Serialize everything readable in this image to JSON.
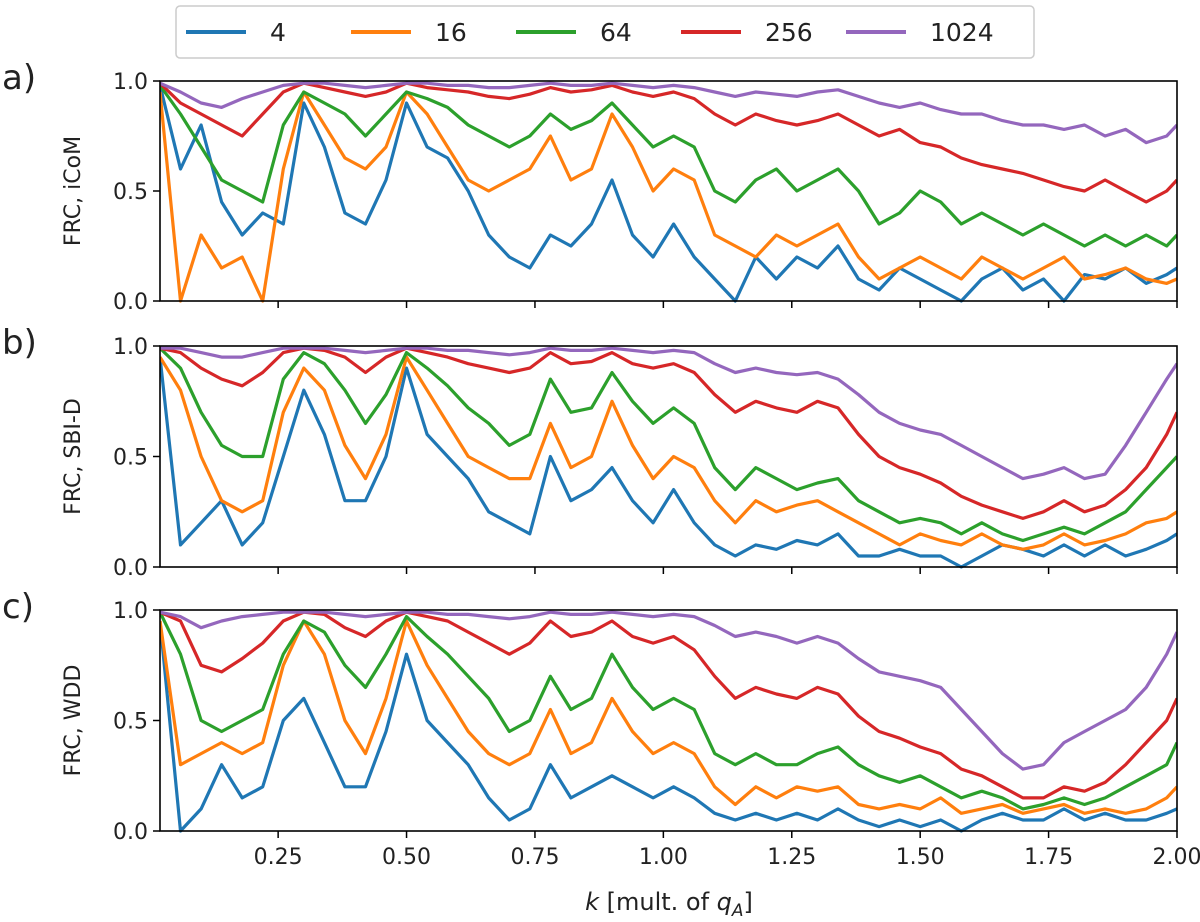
{
  "chart_data": {
    "type": "line",
    "shared_x_axis": true,
    "grid": false,
    "legend": {
      "placement": "top-center",
      "entries": [
        {
          "label": "4",
          "color": "#1f77b4"
        },
        {
          "label": "16",
          "color": "#ff7f0e"
        },
        {
          "label": "64",
          "color": "#2ca02c"
        },
        {
          "label": "256",
          "color": "#d62728"
        },
        {
          "label": "1024",
          "color": "#9467bd"
        }
      ]
    },
    "xlabel": {
      "italic": "k",
      "rest": " [mult. of ",
      "q": "q",
      "sub": "A",
      "close": "]"
    },
    "xlim": [
      0.02,
      2.0
    ],
    "xticks": [
      0.25,
      0.5,
      0.75,
      1.0,
      1.25,
      1.5,
      1.75,
      2.0
    ],
    "xtick_labels": [
      "0.25",
      "0.50",
      "0.75",
      "1.00",
      "1.25",
      "1.50",
      "1.75",
      "2.00"
    ],
    "ylim": [
      0,
      1
    ],
    "yticks": [
      0.0,
      0.5,
      1.0
    ],
    "ytick_labels": [
      "0.0",
      "0.5",
      "1.0"
    ],
    "x": [
      0.02,
      0.06,
      0.1,
      0.14,
      0.18,
      0.22,
      0.26,
      0.3,
      0.34,
      0.38,
      0.42,
      0.46,
      0.5,
      0.54,
      0.58,
      0.62,
      0.66,
      0.7,
      0.74,
      0.78,
      0.82,
      0.86,
      0.9,
      0.94,
      0.98,
      1.02,
      1.06,
      1.1,
      1.14,
      1.18,
      1.22,
      1.26,
      1.3,
      1.34,
      1.38,
      1.42,
      1.46,
      1.5,
      1.54,
      1.58,
      1.62,
      1.66,
      1.7,
      1.74,
      1.78,
      1.82,
      1.86,
      1.9,
      1.94,
      1.98,
      2.0
    ],
    "panels": [
      {
        "letter": "a)",
        "ylabel": "FRC, iCoM",
        "series": [
          {
            "name": "4",
            "values": [
              0.98,
              0.6,
              0.8,
              0.45,
              0.3,
              0.4,
              0.35,
              0.9,
              0.7,
              0.4,
              0.35,
              0.55,
              0.9,
              0.7,
              0.65,
              0.5,
              0.3,
              0.2,
              0.15,
              0.3,
              0.25,
              0.35,
              0.55,
              0.3,
              0.2,
              0.35,
              0.2,
              0.1,
              0.0,
              0.2,
              0.1,
              0.2,
              0.15,
              0.25,
              0.1,
              0.05,
              0.15,
              0.1,
              0.05,
              0.0,
              0.1,
              0.15,
              0.05,
              0.1,
              0.0,
              0.12,
              0.1,
              0.15,
              0.08,
              0.12,
              0.15
            ]
          },
          {
            "name": "16",
            "values": [
              0.95,
              0.0,
              0.3,
              0.15,
              0.2,
              0.0,
              0.6,
              0.95,
              0.8,
              0.65,
              0.6,
              0.7,
              0.95,
              0.85,
              0.7,
              0.55,
              0.5,
              0.55,
              0.6,
              0.75,
              0.55,
              0.6,
              0.85,
              0.7,
              0.5,
              0.6,
              0.55,
              0.3,
              0.25,
              0.2,
              0.3,
              0.25,
              0.3,
              0.35,
              0.2,
              0.1,
              0.15,
              0.2,
              0.15,
              0.1,
              0.2,
              0.15,
              0.1,
              0.15,
              0.2,
              0.1,
              0.12,
              0.15,
              0.1,
              0.08,
              0.1
            ]
          },
          {
            "name": "64",
            "values": [
              0.98,
              0.85,
              0.7,
              0.55,
              0.5,
              0.45,
              0.8,
              0.95,
              0.9,
              0.85,
              0.75,
              0.85,
              0.95,
              0.92,
              0.88,
              0.8,
              0.75,
              0.7,
              0.75,
              0.85,
              0.78,
              0.82,
              0.9,
              0.8,
              0.7,
              0.75,
              0.7,
              0.5,
              0.45,
              0.55,
              0.6,
              0.5,
              0.55,
              0.6,
              0.5,
              0.35,
              0.4,
              0.5,
              0.45,
              0.35,
              0.4,
              0.35,
              0.3,
              0.35,
              0.3,
              0.25,
              0.3,
              0.25,
              0.3,
              0.25,
              0.3
            ]
          },
          {
            "name": "256",
            "values": [
              0.99,
              0.9,
              0.85,
              0.8,
              0.75,
              0.85,
              0.95,
              0.99,
              0.97,
              0.95,
              0.93,
              0.95,
              0.99,
              0.97,
              0.96,
              0.95,
              0.93,
              0.92,
              0.94,
              0.97,
              0.95,
              0.96,
              0.98,
              0.95,
              0.93,
              0.95,
              0.92,
              0.85,
              0.8,
              0.85,
              0.82,
              0.8,
              0.82,
              0.85,
              0.8,
              0.75,
              0.78,
              0.72,
              0.7,
              0.65,
              0.62,
              0.6,
              0.58,
              0.55,
              0.52,
              0.5,
              0.55,
              0.5,
              0.45,
              0.5,
              0.55
            ]
          },
          {
            "name": "1024",
            "values": [
              0.99,
              0.95,
              0.9,
              0.88,
              0.92,
              0.95,
              0.98,
              0.99,
              0.99,
              0.98,
              0.97,
              0.98,
              0.99,
              0.99,
              0.98,
              0.98,
              0.97,
              0.97,
              0.98,
              0.99,
              0.98,
              0.98,
              0.99,
              0.98,
              0.97,
              0.98,
              0.97,
              0.95,
              0.93,
              0.95,
              0.94,
              0.93,
              0.95,
              0.96,
              0.93,
              0.9,
              0.88,
              0.9,
              0.87,
              0.85,
              0.85,
              0.82,
              0.8,
              0.8,
              0.78,
              0.8,
              0.75,
              0.78,
              0.72,
              0.75,
              0.8
            ]
          }
        ]
      },
      {
        "letter": "b)",
        "ylabel": "FRC, SBI-D",
        "series": [
          {
            "name": "4",
            "values": [
              0.95,
              0.1,
              0.2,
              0.3,
              0.1,
              0.2,
              0.5,
              0.8,
              0.6,
              0.3,
              0.3,
              0.5,
              0.9,
              0.6,
              0.5,
              0.4,
              0.25,
              0.2,
              0.15,
              0.5,
              0.3,
              0.35,
              0.45,
              0.3,
              0.2,
              0.35,
              0.2,
              0.1,
              0.05,
              0.1,
              0.08,
              0.12,
              0.1,
              0.15,
              0.05,
              0.05,
              0.08,
              0.05,
              0.05,
              0.0,
              0.05,
              0.1,
              0.08,
              0.05,
              0.1,
              0.05,
              0.1,
              0.05,
              0.08,
              0.12,
              0.15
            ]
          },
          {
            "name": "16",
            "values": [
              0.95,
              0.8,
              0.5,
              0.3,
              0.25,
              0.3,
              0.7,
              0.9,
              0.8,
              0.55,
              0.4,
              0.6,
              0.95,
              0.8,
              0.65,
              0.5,
              0.45,
              0.4,
              0.4,
              0.65,
              0.45,
              0.5,
              0.75,
              0.55,
              0.4,
              0.5,
              0.45,
              0.3,
              0.2,
              0.3,
              0.25,
              0.28,
              0.3,
              0.25,
              0.2,
              0.15,
              0.1,
              0.15,
              0.12,
              0.1,
              0.15,
              0.1,
              0.08,
              0.1,
              0.15,
              0.1,
              0.12,
              0.15,
              0.2,
              0.22,
              0.25
            ]
          },
          {
            "name": "64",
            "values": [
              0.99,
              0.9,
              0.7,
              0.55,
              0.5,
              0.5,
              0.85,
              0.97,
              0.92,
              0.8,
              0.65,
              0.78,
              0.97,
              0.9,
              0.82,
              0.72,
              0.65,
              0.55,
              0.6,
              0.85,
              0.7,
              0.72,
              0.88,
              0.75,
              0.65,
              0.72,
              0.65,
              0.45,
              0.35,
              0.45,
              0.4,
              0.35,
              0.38,
              0.4,
              0.3,
              0.25,
              0.2,
              0.22,
              0.2,
              0.15,
              0.2,
              0.15,
              0.12,
              0.15,
              0.18,
              0.15,
              0.2,
              0.25,
              0.35,
              0.45,
              0.5
            ]
          },
          {
            "name": "256",
            "values": [
              0.99,
              0.97,
              0.9,
              0.85,
              0.82,
              0.88,
              0.97,
              0.99,
              0.98,
              0.95,
              0.88,
              0.95,
              0.99,
              0.97,
              0.95,
              0.92,
              0.9,
              0.88,
              0.9,
              0.97,
              0.92,
              0.93,
              0.97,
              0.92,
              0.9,
              0.92,
              0.88,
              0.78,
              0.7,
              0.75,
              0.72,
              0.7,
              0.75,
              0.72,
              0.6,
              0.5,
              0.45,
              0.42,
              0.38,
              0.32,
              0.28,
              0.25,
              0.22,
              0.25,
              0.3,
              0.25,
              0.28,
              0.35,
              0.45,
              0.6,
              0.7
            ]
          },
          {
            "name": "1024",
            "values": [
              0.99,
              0.99,
              0.97,
              0.95,
              0.95,
              0.97,
              0.99,
              0.99,
              0.99,
              0.98,
              0.97,
              0.98,
              0.99,
              0.99,
              0.98,
              0.98,
              0.97,
              0.96,
              0.97,
              0.99,
              0.98,
              0.98,
              0.99,
              0.98,
              0.97,
              0.98,
              0.97,
              0.92,
              0.88,
              0.9,
              0.88,
              0.87,
              0.88,
              0.85,
              0.78,
              0.7,
              0.65,
              0.62,
              0.6,
              0.55,
              0.5,
              0.45,
              0.4,
              0.42,
              0.45,
              0.4,
              0.42,
              0.55,
              0.7,
              0.85,
              0.92
            ]
          }
        ]
      },
      {
        "letter": "c)",
        "ylabel": "FRC, WDD",
        "series": [
          {
            "name": "4",
            "values": [
              0.95,
              0.0,
              0.1,
              0.3,
              0.15,
              0.2,
              0.5,
              0.6,
              0.4,
              0.2,
              0.2,
              0.45,
              0.8,
              0.5,
              0.4,
              0.3,
              0.15,
              0.05,
              0.1,
              0.3,
              0.15,
              0.2,
              0.25,
              0.2,
              0.15,
              0.2,
              0.15,
              0.08,
              0.05,
              0.08,
              0.05,
              0.08,
              0.05,
              0.1,
              0.05,
              0.02,
              0.05,
              0.02,
              0.05,
              0.0,
              0.05,
              0.08,
              0.05,
              0.05,
              0.1,
              0.05,
              0.08,
              0.05,
              0.05,
              0.08,
              0.1
            ]
          },
          {
            "name": "16",
            "values": [
              0.95,
              0.3,
              0.35,
              0.4,
              0.35,
              0.4,
              0.75,
              0.95,
              0.8,
              0.5,
              0.35,
              0.6,
              0.95,
              0.75,
              0.6,
              0.45,
              0.35,
              0.3,
              0.35,
              0.55,
              0.35,
              0.4,
              0.6,
              0.45,
              0.35,
              0.4,
              0.35,
              0.2,
              0.12,
              0.2,
              0.15,
              0.2,
              0.18,
              0.2,
              0.12,
              0.1,
              0.12,
              0.1,
              0.15,
              0.08,
              0.1,
              0.12,
              0.08,
              0.1,
              0.12,
              0.08,
              0.1,
              0.08,
              0.1,
              0.15,
              0.2
            ]
          },
          {
            "name": "64",
            "values": [
              0.99,
              0.8,
              0.5,
              0.45,
              0.5,
              0.55,
              0.8,
              0.95,
              0.9,
              0.75,
              0.65,
              0.8,
              0.97,
              0.88,
              0.8,
              0.7,
              0.6,
              0.45,
              0.5,
              0.7,
              0.55,
              0.6,
              0.8,
              0.65,
              0.55,
              0.6,
              0.55,
              0.35,
              0.3,
              0.35,
              0.3,
              0.3,
              0.35,
              0.38,
              0.3,
              0.25,
              0.22,
              0.25,
              0.2,
              0.15,
              0.18,
              0.15,
              0.1,
              0.12,
              0.15,
              0.12,
              0.15,
              0.2,
              0.25,
              0.3,
              0.4
            ]
          },
          {
            "name": "256",
            "values": [
              0.99,
              0.95,
              0.75,
              0.72,
              0.78,
              0.85,
              0.95,
              0.99,
              0.98,
              0.92,
              0.88,
              0.95,
              0.99,
              0.97,
              0.95,
              0.9,
              0.85,
              0.8,
              0.85,
              0.95,
              0.88,
              0.9,
              0.95,
              0.88,
              0.85,
              0.88,
              0.82,
              0.7,
              0.6,
              0.65,
              0.62,
              0.6,
              0.65,
              0.62,
              0.52,
              0.45,
              0.42,
              0.38,
              0.35,
              0.28,
              0.25,
              0.2,
              0.15,
              0.15,
              0.2,
              0.18,
              0.22,
              0.3,
              0.4,
              0.5,
              0.6
            ]
          },
          {
            "name": "1024",
            "values": [
              0.99,
              0.97,
              0.92,
              0.95,
              0.97,
              0.98,
              0.99,
              0.99,
              0.99,
              0.98,
              0.97,
              0.98,
              0.99,
              0.99,
              0.98,
              0.98,
              0.97,
              0.96,
              0.97,
              0.99,
              0.98,
              0.98,
              0.99,
              0.98,
              0.97,
              0.98,
              0.97,
              0.93,
              0.88,
              0.9,
              0.88,
              0.85,
              0.88,
              0.85,
              0.78,
              0.72,
              0.7,
              0.68,
              0.65,
              0.55,
              0.45,
              0.35,
              0.28,
              0.3,
              0.4,
              0.45,
              0.5,
              0.55,
              0.65,
              0.8,
              0.9
            ]
          }
        ]
      }
    ]
  }
}
